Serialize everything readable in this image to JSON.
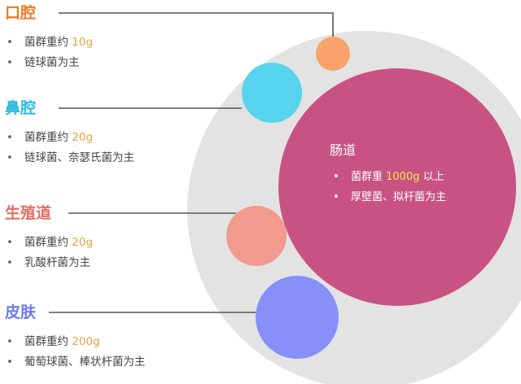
{
  "colors": {
    "line": "#555555",
    "background_circle": "#e3e3e3",
    "oral": "#f7a36a",
    "nasal": "#58d3ee",
    "repro": "#f19a8d",
    "skin": "#8690f8",
    "gut": "#c85382",
    "gut_highlight": "#f5e84a",
    "text_highlight": "#e8a33d"
  },
  "sections": [
    {
      "id": "oral",
      "title": "口腔",
      "title_color": "#ef7a1f",
      "bullets": [
        {
          "pre": "菌群重约 ",
          "hl": "10g",
          "post": ""
        },
        {
          "pre": "链球菌为主",
          "hl": "",
          "post": ""
        }
      ]
    },
    {
      "id": "nasal",
      "title": "鼻腔",
      "title_color": "#2bbbe0",
      "bullets": [
        {
          "pre": "菌群重约 ",
          "hl": "20g",
          "post": ""
        },
        {
          "pre": "链球菌、奈瑟氏菌为主",
          "hl": "",
          "post": ""
        }
      ]
    },
    {
      "id": "repro",
      "title": "生殖道",
      "title_color": "#e06f63",
      "bullets": [
        {
          "pre": "菌群重约 ",
          "hl": "20g",
          "post": ""
        },
        {
          "pre": "乳酸杆菌为主",
          "hl": "",
          "post": ""
        }
      ]
    },
    {
      "id": "skin",
      "title": "皮肤",
      "title_color": "#6e78f3",
      "bullets": [
        {
          "pre": "菌群重约 ",
          "hl": "200g",
          "post": ""
        },
        {
          "pre": "葡萄球菌、棒状杆菌为主",
          "hl": "",
          "post": ""
        }
      ]
    }
  ],
  "gut": {
    "title": "肠道",
    "bullets": [
      {
        "pre": "菌群重 ",
        "hl": "1000g",
        "post": " 以上"
      },
      {
        "pre": "厚壁菌、拟杆菌为主",
        "hl": "",
        "post": ""
      }
    ]
  },
  "bullet_char": "•"
}
